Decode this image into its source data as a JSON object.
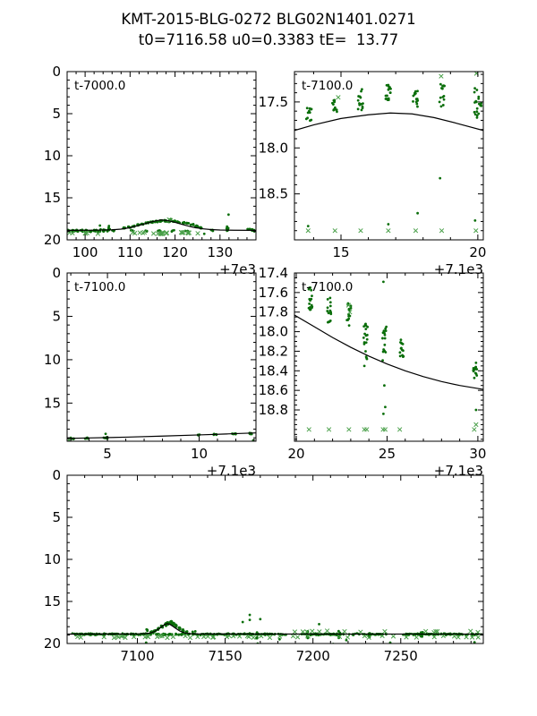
{
  "title": {
    "line1": "KMT-2015-BLG-0272 BLG02N1401.0271",
    "line2": "t0=7116.58 u0=0.3383 tE=  13.77"
  },
  "colors": {
    "background": "#ffffff",
    "axis": "#000000",
    "text": "#000000",
    "model_curve": "#000000",
    "data_dot": "#0a6e0a",
    "data_x_marker": "#4aa04a"
  },
  "chart_data": [
    {
      "id": "top-left",
      "type": "scatter",
      "annotation": "t-7000.0",
      "offset_label": "+7e3",
      "xlim": [
        96,
        138
      ],
      "ylim": [
        0,
        20
      ],
      "y_inverted": true,
      "xticks": [
        {
          "v": 100,
          "t": "100"
        },
        {
          "v": 110,
          "t": "110"
        },
        {
          "v": 120,
          "t": "120"
        },
        {
          "v": 130,
          "t": "130"
        }
      ],
      "yticks": [
        {
          "v": 0,
          "t": "0"
        },
        {
          "v": 5,
          "t": "5"
        },
        {
          "v": 10,
          "t": "10"
        },
        {
          "v": 15,
          "t": "15"
        },
        {
          "v": 20,
          "t": "20"
        }
      ],
      "minor_x": 2,
      "minor_y": 1,
      "cluster_jx": 0.3,
      "curve": [
        [
          96,
          18.87
        ],
        [
          102,
          18.85
        ],
        [
          106,
          18.8
        ],
        [
          108,
          18.72
        ],
        [
          110,
          18.55
        ],
        [
          112,
          18.28
        ],
        [
          114,
          17.98
        ],
        [
          115.5,
          17.76
        ],
        [
          117,
          17.63
        ],
        [
          118.5,
          17.72
        ],
        [
          120,
          17.92
        ],
        [
          122,
          18.22
        ],
        [
          124,
          18.5
        ],
        [
          126,
          18.68
        ],
        [
          128,
          18.78
        ],
        [
          130,
          18.83
        ],
        [
          133,
          18.86
        ],
        [
          138,
          18.87
        ]
      ],
      "clusters": [
        [
          96.3,
          18.8,
          19.02,
          7
        ],
        [
          97.2,
          18.82,
          19.05,
          6
        ],
        [
          98.2,
          18.78,
          19.0,
          7
        ],
        [
          99.2,
          18.8,
          19.02,
          6
        ],
        [
          100.2,
          18.8,
          19.0,
          7
        ],
        [
          101.2,
          18.8,
          19.05,
          6
        ],
        [
          102.2,
          18.78,
          19.0,
          7
        ],
        [
          103.2,
          18.72,
          19.05,
          8
        ],
        [
          104.2,
          18.78,
          19.02,
          6
        ],
        [
          105.2,
          18.5,
          19.15,
          9
        ],
        [
          106.2,
          18.82,
          19.0,
          4
        ],
        [
          108.8,
          18.5,
          18.68,
          5
        ],
        [
          109.8,
          18.42,
          18.58,
          5
        ],
        [
          110.8,
          18.28,
          18.45,
          6
        ],
        [
          111.8,
          18.15,
          18.3,
          6
        ],
        [
          112.8,
          18.02,
          18.18,
          6
        ],
        [
          113.8,
          17.9,
          18.05,
          6
        ],
        [
          114.8,
          17.8,
          17.95,
          7
        ],
        [
          115.8,
          17.72,
          17.88,
          7
        ],
        [
          116.8,
          17.68,
          17.85,
          8
        ],
        [
          117.8,
          17.62,
          17.85,
          8
        ],
        [
          118.8,
          17.55,
          17.95,
          14
        ],
        [
          119.8,
          17.72,
          17.9,
          7
        ],
        [
          120.8,
          17.8,
          17.98,
          6
        ],
        [
          121.8,
          17.88,
          18.05,
          6
        ],
        [
          122.8,
          17.98,
          18.15,
          6
        ],
        [
          123.8,
          18.1,
          18.3,
          6
        ],
        [
          124.8,
          18.3,
          18.55,
          7
        ],
        [
          125.8,
          18.45,
          18.65,
          6
        ],
        [
          110.5,
          18.85,
          19.0,
          3
        ],
        [
          113.5,
          18.85,
          19.0,
          3
        ],
        [
          116.5,
          18.85,
          19.02,
          4
        ],
        [
          119.5,
          18.85,
          19.0,
          3
        ],
        [
          122.5,
          18.85,
          19.0,
          3
        ],
        [
          128.3,
          18.75,
          18.95,
          5
        ],
        [
          131.7,
          18.4,
          18.92,
          8
        ],
        [
          136.4,
          18.7,
          18.96,
          6
        ],
        [
          137.4,
          18.72,
          19.0,
          7
        ]
      ],
      "points": [
        [
          131.9,
          17.0
        ],
        [
          105.3,
          18.35
        ],
        [
          103.3,
          18.3
        ],
        [
          126.5,
          19.28
        ]
      ],
      "x_markers": [
        [
          118.7,
          17.6
        ],
        [
          119.0,
          17.68
        ]
      ],
      "marker_rows": [
        {
          "x0": 96.2,
          "x1": 126.5,
          "n": 30,
          "y": 19.2,
          "spread": 0.1
        }
      ]
    },
    {
      "id": "top-right",
      "type": "scatter",
      "annotation": "t-7100.0",
      "offset_label": "+7.1e3",
      "xlim": [
        13.3,
        20.2
      ],
      "ylim": [
        17.17,
        19.0
      ],
      "y_inverted": true,
      "xticks": [
        {
          "v": 15,
          "t": "15"
        },
        {
          "v": 20,
          "t": "20"
        }
      ],
      "yticks": [
        {
          "v": 17.5,
          "t": "17.5"
        },
        {
          "v": 18.0,
          "t": "18.0"
        },
        {
          "v": 18.5,
          "t": "18.5"
        }
      ],
      "minor_x": 1,
      "minor_y": 0.1,
      "cluster_jx": 0.1,
      "curve": [
        [
          13.3,
          17.81
        ],
        [
          14,
          17.75
        ],
        [
          15,
          17.68
        ],
        [
          16,
          17.64
        ],
        [
          16.8,
          17.62
        ],
        [
          17.6,
          17.63
        ],
        [
          18.4,
          17.67
        ],
        [
          19.2,
          17.73
        ],
        [
          20.2,
          17.81
        ]
      ],
      "clusters": [
        [
          13.82,
          17.55,
          17.72,
          12
        ],
        [
          14.78,
          17.44,
          17.62,
          12
        ],
        [
          15.72,
          17.36,
          17.6,
          14
        ],
        [
          16.72,
          17.3,
          17.5,
          16
        ],
        [
          17.72,
          17.35,
          17.58,
          14
        ],
        [
          18.7,
          17.28,
          17.58,
          14
        ],
        [
          19.95,
          17.35,
          17.65,
          13
        ],
        [
          20.12,
          17.42,
          17.6,
          5
        ]
      ],
      "points": [
        [
          13.8,
          18.85
        ],
        [
          16.73,
          18.83
        ],
        [
          17.8,
          18.71
        ],
        [
          18.62,
          18.33
        ],
        [
          19.9,
          18.79
        ],
        [
          19.97,
          17.67
        ]
      ],
      "x_markers": [
        [
          13.8,
          18.9
        ],
        [
          14.78,
          18.9
        ],
        [
          15.72,
          18.9
        ],
        [
          16.73,
          18.9
        ],
        [
          17.73,
          18.9
        ],
        [
          18.68,
          18.9
        ],
        [
          19.93,
          18.9
        ],
        [
          18.66,
          17.22
        ],
        [
          19.95,
          17.19
        ],
        [
          14.9,
          17.45
        ]
      ],
      "marker_rows": []
    },
    {
      "id": "middle-left",
      "type": "scatter",
      "annotation": "t-7100.0",
      "offset_label": "+7.1e3",
      "xlim": [
        2.8,
        13.1
      ],
      "ylim": [
        0,
        19.4
      ],
      "y_inverted": true,
      "xticks": [
        {
          "v": 5,
          "t": "5"
        },
        {
          "v": 10,
          "t": "10"
        }
      ],
      "yticks": [
        {
          "v": 0,
          "t": "0"
        },
        {
          "v": 5,
          "t": "5"
        },
        {
          "v": 10,
          "t": "10"
        },
        {
          "v": 15,
          "t": "15"
        }
      ],
      "minor_x": 1,
      "minor_y": 1,
      "cluster_jx": 0.12,
      "curve": [
        [
          2.8,
          19.08
        ],
        [
          4,
          19.02
        ],
        [
          6,
          18.93
        ],
        [
          8,
          18.81
        ],
        [
          10,
          18.67
        ],
        [
          11.5,
          18.56
        ],
        [
          13.1,
          18.44
        ]
      ],
      "clusters": [
        [
          3.05,
          19.0,
          19.18,
          5
        ],
        [
          3.85,
          18.98,
          19.12,
          6
        ],
        [
          4.9,
          18.92,
          19.1,
          6
        ],
        [
          9.95,
          18.62,
          18.76,
          5
        ],
        [
          10.9,
          18.56,
          18.7,
          6
        ],
        [
          11.9,
          18.5,
          18.64,
          6
        ],
        [
          12.85,
          18.42,
          18.58,
          7
        ]
      ],
      "points": [
        [
          4.9,
          18.55
        ],
        [
          12.95,
          19.3
        ]
      ],
      "x_markers": [
        [
          2.9,
          19.25
        ]
      ],
      "marker_rows": []
    },
    {
      "id": "middle-right",
      "type": "scatter",
      "annotation": "t-7100.0",
      "offset_label": "+7.1e3",
      "xlim": [
        19.9,
        30.3
      ],
      "ylim": [
        17.4,
        19.12
      ],
      "y_inverted": true,
      "xticks": [
        {
          "v": 20,
          "t": "20"
        },
        {
          "v": 25,
          "t": "25"
        },
        {
          "v": 30,
          "t": "30"
        }
      ],
      "yticks": [
        {
          "v": 17.4,
          "t": "17.4"
        },
        {
          "v": 17.6,
          "t": "17.6"
        },
        {
          "v": 17.8,
          "t": "17.8"
        },
        {
          "v": 18.0,
          "t": "18.0"
        },
        {
          "v": 18.2,
          "t": "18.2"
        },
        {
          "v": 18.4,
          "t": "18.4"
        },
        {
          "v": 18.6,
          "t": "18.6"
        },
        {
          "v": 18.8,
          "t": "18.8"
        }
      ],
      "minor_x": 1,
      "minor_y": 0.05,
      "cluster_jx": 0.11,
      "curve": [
        [
          19.9,
          17.83
        ],
        [
          21,
          17.95
        ],
        [
          22,
          18.06
        ],
        [
          23,
          18.16
        ],
        [
          24,
          18.25
        ],
        [
          25,
          18.33
        ],
        [
          26,
          18.4
        ],
        [
          27,
          18.46
        ],
        [
          28,
          18.51
        ],
        [
          29,
          18.55
        ],
        [
          30.3,
          18.59
        ]
      ],
      "clusters": [
        [
          20.78,
          17.55,
          17.78,
          16
        ],
        [
          21.82,
          17.65,
          17.95,
          16
        ],
        [
          22.9,
          17.7,
          17.98,
          14
        ],
        [
          23.82,
          17.85,
          18.28,
          18
        ],
        [
          24.85,
          17.95,
          18.3,
          16
        ],
        [
          25.8,
          18.05,
          18.28,
          14
        ],
        [
          29.85,
          18.3,
          18.48,
          12
        ]
      ],
      "points": [
        [
          24.8,
          17.49
        ],
        [
          24.85,
          18.55
        ],
        [
          24.9,
          18.77
        ],
        [
          24.8,
          18.84
        ],
        [
          29.9,
          18.8
        ],
        [
          23.75,
          18.35
        ]
      ],
      "x_markers": [
        [
          20.7,
          19.0
        ],
        [
          21.8,
          19.0
        ],
        [
          22.9,
          19.0
        ],
        [
          23.75,
          19.0
        ],
        [
          23.88,
          19.0
        ],
        [
          24.78,
          19.0
        ],
        [
          24.9,
          19.0
        ],
        [
          25.7,
          19.0
        ],
        [
          29.8,
          19.0
        ],
        [
          29.9,
          18.95
        ],
        [
          22.88,
          17.73
        ],
        [
          22.95,
          17.8
        ]
      ],
      "marker_rows": []
    },
    {
      "id": "bottom",
      "type": "scatter",
      "annotation": null,
      "offset_label": null,
      "xlim": [
        7060,
        7297
      ],
      "ylim": [
        0,
        20
      ],
      "y_inverted": true,
      "xticks": [
        {
          "v": 7100,
          "t": "7100"
        },
        {
          "v": 7150,
          "t": "7150"
        },
        {
          "v": 7200,
          "t": "7200"
        },
        {
          "v": 7250,
          "t": "7250"
        }
      ],
      "yticks": [
        {
          "v": 0,
          "t": "0"
        },
        {
          "v": 5,
          "t": "5"
        },
        {
          "v": 10,
          "t": "10"
        },
        {
          "v": 15,
          "t": "15"
        },
        {
          "v": 20,
          "t": "20"
        }
      ],
      "minor_x": 10,
      "minor_y": 1,
      "cluster_jx": 0.5,
      "curve": [
        [
          7060,
          18.88
        ],
        [
          7096,
          18.87
        ],
        [
          7102,
          18.85
        ],
        [
          7106,
          18.8
        ],
        [
          7108,
          18.72
        ],
        [
          7110,
          18.55
        ],
        [
          7112,
          18.28
        ],
        [
          7114,
          17.98
        ],
        [
          7115.5,
          17.76
        ],
        [
          7117,
          17.63
        ],
        [
          7118.5,
          17.72
        ],
        [
          7120,
          17.92
        ],
        [
          7122,
          18.22
        ],
        [
          7124,
          18.5
        ],
        [
          7126,
          18.68
        ],
        [
          7128,
          18.78
        ],
        [
          7130,
          18.83
        ],
        [
          7135,
          18.87
        ],
        [
          7297,
          18.88
        ]
      ],
      "band": {
        "y": 18.9,
        "spread": 0.13,
        "segments": [
          [
            7063,
            7096,
            85
          ],
          [
            7096,
            7135,
            95
          ],
          [
            7135,
            7186,
            130
          ],
          [
            7192,
            7242,
            115
          ],
          [
            7251,
            7296,
            105
          ]
        ]
      },
      "clusters": [
        [
          7108,
          18.55,
          18.75,
          6
        ],
        [
          7110,
          18.4,
          18.6,
          7
        ],
        [
          7112,
          18.15,
          18.4,
          8
        ],
        [
          7114,
          17.85,
          18.1,
          9
        ],
        [
          7116,
          17.6,
          17.9,
          10
        ],
        [
          7117.5,
          17.45,
          17.75,
          12
        ],
        [
          7119,
          17.35,
          17.65,
          12
        ],
        [
          7120.5,
          17.5,
          17.8,
          10
        ],
        [
          7122,
          17.75,
          18.05,
          9
        ],
        [
          7124,
          18.1,
          18.4,
          8
        ],
        [
          7126,
          18.35,
          18.6,
          7
        ],
        [
          7128,
          18.55,
          18.75,
          6
        ],
        [
          7105.5,
          18.3,
          18.55,
          3
        ],
        [
          7168,
          18.6,
          19.5,
          5
        ],
        [
          7197,
          18.55,
          19.35,
          6
        ],
        [
          7215,
          18.5,
          19.6,
          6
        ],
        [
          7232,
          18.6,
          19.25,
          5
        ],
        [
          7262,
          18.65,
          19.2,
          4
        ]
      ],
      "points": [
        [
          7160,
          17.45
        ],
        [
          7164,
          16.6
        ],
        [
          7164,
          17.2
        ],
        [
          7170,
          17.1
        ],
        [
          7203.5,
          17.7
        ],
        [
          7105,
          19.9
        ],
        [
          7168.5,
          20.0
        ],
        [
          7211.5,
          20.05
        ],
        [
          7219,
          19.6
        ],
        [
          7244,
          19.9
        ],
        [
          7292,
          19.85
        ],
        [
          7181,
          19.5
        ],
        [
          7133,
          18.55
        ],
        [
          7131.5,
          18.6
        ]
      ],
      "x_markers": [],
      "marker_rows": [
        {
          "x0": 7061,
          "x1": 7296,
          "n": 55,
          "y": 19.2,
          "spread": 0.12
        },
        {
          "x0": 7188,
          "x1": 7246,
          "n": 9,
          "y": 18.55,
          "spread": 0.08
        },
        {
          "x0": 7262,
          "x1": 7295,
          "n": 6,
          "y": 18.6,
          "spread": 0.1
        }
      ]
    }
  ]
}
